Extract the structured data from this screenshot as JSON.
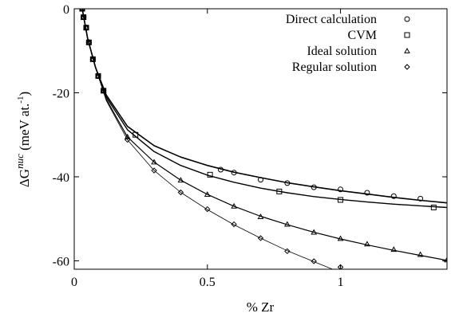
{
  "chart_data": {
    "type": "scatter",
    "title": "",
    "xlabel": "% Zr",
    "ylabel_main": "ΔG",
    "ylabel_sup": "nuc",
    "ylabel_units": " (meV at.",
    "ylabel_units_sup": "-1",
    "ylabel_close": ")",
    "xlim": [
      0,
      1.4
    ],
    "ylim": [
      -62,
      0
    ],
    "x_ticks": [
      {
        "value": 0,
        "label": "0"
      },
      {
        "value": 0.5,
        "label": "0.5"
      },
      {
        "value": 1,
        "label": "1"
      }
    ],
    "y_ticks": [
      {
        "value": 0,
        "label": "0"
      },
      {
        "value": -20,
        "label": "-20"
      },
      {
        "value": -40,
        "label": "-40"
      },
      {
        "value": -60,
        "label": "-60"
      }
    ],
    "grid": false,
    "legend_position": "top-right",
    "series": [
      {
        "name": "Direct calculation",
        "marker": "circle",
        "points": [
          [
            0.03,
            0
          ],
          [
            0.035,
            -2
          ],
          [
            0.045,
            -4.5
          ],
          [
            0.055,
            -8
          ],
          [
            0.07,
            -12
          ],
          [
            0.09,
            -16
          ],
          [
            0.11,
            -19.5
          ],
          [
            0.55,
            -38.3
          ],
          [
            0.6,
            -39
          ],
          [
            0.7,
            -40.7
          ],
          [
            0.8,
            -41.5
          ],
          [
            0.9,
            -42.5
          ],
          [
            1.0,
            -43
          ],
          [
            1.1,
            -43.8
          ],
          [
            1.2,
            -44.6
          ],
          [
            1.3,
            -45.2
          ]
        ],
        "curve": [
          [
            0.03,
            0
          ],
          [
            0.05,
            -7
          ],
          [
            0.08,
            -14
          ],
          [
            0.12,
            -20.5
          ],
          [
            0.2,
            -28
          ],
          [
            0.3,
            -32.6
          ],
          [
            0.4,
            -35.3
          ],
          [
            0.5,
            -37.3
          ],
          [
            0.6,
            -38.9
          ],
          [
            0.7,
            -40.2
          ],
          [
            0.8,
            -41.4
          ],
          [
            0.9,
            -42.4
          ],
          [
            1.0,
            -43.3
          ],
          [
            1.1,
            -44.1
          ],
          [
            1.2,
            -44.9
          ],
          [
            1.3,
            -45.6
          ],
          [
            1.4,
            -46.2
          ]
        ]
      },
      {
        "name": "CVM",
        "marker": "square",
        "points": [
          [
            0.03,
            0
          ],
          [
            0.035,
            -2
          ],
          [
            0.045,
            -4.5
          ],
          [
            0.055,
            -8
          ],
          [
            0.07,
            -12
          ],
          [
            0.09,
            -16
          ],
          [
            0.11,
            -19.5
          ],
          [
            0.23,
            -30
          ],
          [
            0.51,
            -39.5
          ],
          [
            0.77,
            -43.5
          ],
          [
            1.0,
            -45.5
          ],
          [
            1.35,
            -47.3
          ]
        ],
        "curve": [
          [
            0.03,
            0
          ],
          [
            0.05,
            -7
          ],
          [
            0.08,
            -14
          ],
          [
            0.12,
            -21
          ],
          [
            0.2,
            -28.8
          ],
          [
            0.3,
            -34
          ],
          [
            0.4,
            -37.3
          ],
          [
            0.5,
            -39.6
          ],
          [
            0.6,
            -41.3
          ],
          [
            0.7,
            -42.7
          ],
          [
            0.8,
            -43.8
          ],
          [
            0.9,
            -44.7
          ],
          [
            1.0,
            -45.4
          ],
          [
            1.1,
            -46
          ],
          [
            1.2,
            -46.5
          ],
          [
            1.3,
            -46.9
          ],
          [
            1.4,
            -47.3
          ]
        ]
      },
      {
        "name": "Ideal solution",
        "marker": "triangle",
        "points": [
          [
            0.03,
            0
          ],
          [
            0.035,
            -2
          ],
          [
            0.045,
            -4.5
          ],
          [
            0.055,
            -8
          ],
          [
            0.07,
            -12
          ],
          [
            0.09,
            -16
          ],
          [
            0.11,
            -19.5
          ],
          [
            0.2,
            -30.5
          ],
          [
            0.3,
            -36.5
          ],
          [
            0.4,
            -40.8
          ],
          [
            0.5,
            -44.2
          ],
          [
            0.6,
            -47
          ],
          [
            0.7,
            -49.5
          ],
          [
            0.8,
            -51.3
          ],
          [
            0.9,
            -53.2
          ],
          [
            1.0,
            -54.7
          ],
          [
            1.1,
            -56
          ],
          [
            1.2,
            -57.3
          ],
          [
            1.3,
            -58.5
          ],
          [
            1.4,
            -59.8
          ]
        ],
        "curve": [
          [
            0.03,
            0
          ],
          [
            0.05,
            -7
          ],
          [
            0.08,
            -14
          ],
          [
            0.12,
            -21.5
          ],
          [
            0.2,
            -30.5
          ],
          [
            0.3,
            -36.5
          ],
          [
            0.4,
            -40.8
          ],
          [
            0.5,
            -44.2
          ],
          [
            0.6,
            -47
          ],
          [
            0.7,
            -49.4
          ],
          [
            0.8,
            -51.4
          ],
          [
            0.9,
            -53.2
          ],
          [
            1.0,
            -54.8
          ],
          [
            1.1,
            -56.2
          ],
          [
            1.2,
            -57.5
          ],
          [
            1.3,
            -58.7
          ],
          [
            1.4,
            -59.9
          ]
        ]
      },
      {
        "name": "Regular solution",
        "marker": "diamond",
        "points": [
          [
            0.03,
            0
          ],
          [
            0.035,
            -2
          ],
          [
            0.045,
            -4.5
          ],
          [
            0.055,
            -8
          ],
          [
            0.07,
            -12
          ],
          [
            0.09,
            -16
          ],
          [
            0.11,
            -19.5
          ],
          [
            0.2,
            -31.2
          ],
          [
            0.3,
            -38.5
          ],
          [
            0.4,
            -43.7
          ],
          [
            0.5,
            -47.7
          ],
          [
            0.6,
            -51.3
          ],
          [
            0.7,
            -54.6
          ],
          [
            0.8,
            -57.7
          ],
          [
            0.9,
            -60.1
          ],
          [
            1.0,
            -61.5
          ]
        ],
        "curve": [
          [
            0.03,
            0
          ],
          [
            0.05,
            -7
          ],
          [
            0.08,
            -14
          ],
          [
            0.12,
            -21.8
          ],
          [
            0.2,
            -31.2
          ],
          [
            0.3,
            -38.5
          ],
          [
            0.4,
            -43.7
          ],
          [
            0.5,
            -47.8
          ],
          [
            0.6,
            -51.4
          ],
          [
            0.7,
            -54.6
          ],
          [
            0.8,
            -57.6
          ],
          [
            0.9,
            -60.2
          ],
          [
            0.97,
            -62
          ]
        ]
      }
    ]
  }
}
